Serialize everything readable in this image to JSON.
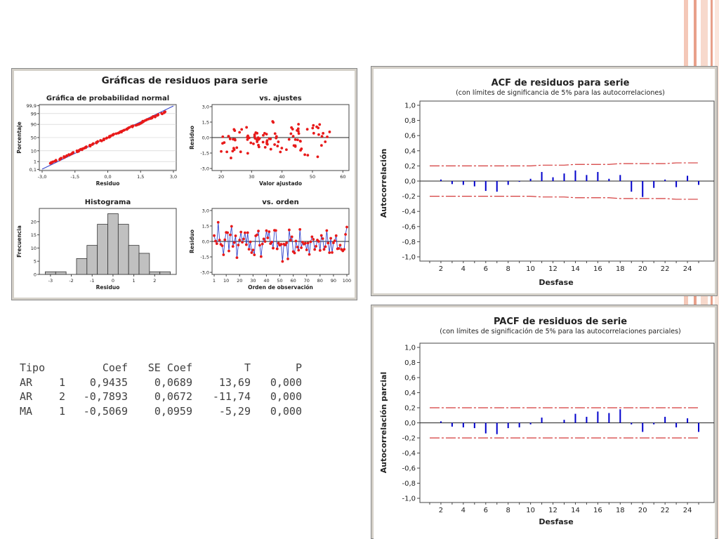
{
  "colors": {
    "accent": "#e8a08a",
    "bar": "#0000cc",
    "limit": "#d43a3a",
    "dot": "#e81a1a",
    "line": "#3344cc",
    "hist": "#c0c0c0"
  },
  "stats_table": {
    "headers": [
      "Tipo",
      "",
      "Coef",
      "SE Coef",
      "T",
      "P"
    ],
    "rows": [
      [
        "AR",
        "1",
        "0,9435",
        "0,0689",
        "13,69",
        "0,000"
      ],
      [
        "AR",
        "2",
        "-0,7893",
        "0,0672",
        "-11,74",
        "0,000"
      ],
      [
        "MA",
        "1",
        "-0,5069",
        "0,0959",
        "-5,29",
        "0,000"
      ]
    ]
  },
  "chart_data": [
    {
      "id": "residuals-4in1",
      "type": "panel",
      "title": "Gráficas de residuos para serie",
      "panels": [
        {
          "type": "scatter",
          "title": "Gráfica de probabilidad normal",
          "xlabel": "Residuo",
          "ylabel": "Porcentaje",
          "xticks": [
            "-3,0",
            "-1,5",
            "0,0",
            "1,5",
            "3,0"
          ],
          "yticks": [
            "0,1",
            "1",
            "10",
            "50",
            "90",
            "99",
            "99,9"
          ],
          "xlim": [
            -3,
            3
          ],
          "ylim": [
            -3.1,
            3.1
          ],
          "note": "normal probability scale, points near reference line"
        },
        {
          "type": "scatter",
          "title": "vs. ajustes",
          "xlabel": "Valor ajustado",
          "ylabel": "Residuo",
          "xticks": [
            "20",
            "30",
            "40",
            "50",
            "60"
          ],
          "yticks": [
            "3,0",
            "1,5",
            "0,0",
            "-1,5",
            "-3,0"
          ],
          "xlim": [
            17,
            62
          ],
          "ylim": [
            -3.2,
            3.2
          ]
        },
        {
          "type": "bar",
          "title": "Histograma",
          "xlabel": "Residuo",
          "ylabel": "Frecuencia",
          "bin_edges": [
            -3.25,
            -2.75,
            -2.25,
            -1.75,
            -1.25,
            -0.75,
            -0.25,
            0.25,
            0.75,
            1.25,
            1.75,
            2.25,
            2.75
          ],
          "values": [
            1,
            1,
            0,
            6,
            11,
            19,
            23,
            19,
            11,
            8,
            1,
            1
          ],
          "xticks": [
            "-3",
            "-2",
            "-1",
            "0",
            "1",
            "2"
          ],
          "yticks": [
            "0",
            "5",
            "10",
            "15",
            "20"
          ],
          "ylim": [
            0,
            25
          ]
        },
        {
          "type": "line",
          "title": "vs. orden",
          "xlabel": "Orden de observación",
          "ylabel": "Residuo",
          "xticks": [
            "1",
            "10",
            "20",
            "30",
            "40",
            "50",
            "60",
            "70",
            "80",
            "90",
            "100"
          ],
          "yticks": [
            "3,0",
            "1,5",
            "0,0",
            "-1,5",
            "-3,0"
          ],
          "xlim": [
            1,
            100
          ],
          "ylim": [
            -3.2,
            3.2
          ]
        }
      ]
    },
    {
      "id": "acf",
      "type": "bar",
      "title": "ACF de residuos para serie",
      "subtitle": "(con límites de significancia de 5% para las autocorrelaciones)",
      "xlabel": "Desfase",
      "ylabel": "Autocorrelación",
      "ylim": [
        -1,
        1
      ],
      "yticks": [
        "1,0",
        "0,8",
        "0,6",
        "0,4",
        "0,2",
        "0,0",
        "-0,2",
        "-0,4",
        "-0,6",
        "-0,8",
        "-1,0"
      ],
      "xticks": [
        "2",
        "4",
        "6",
        "8",
        "10",
        "12",
        "14",
        "16",
        "18",
        "20",
        "22",
        "24"
      ],
      "lags": [
        1,
        2,
        3,
        4,
        5,
        6,
        7,
        8,
        9,
        10,
        11,
        12,
        13,
        14,
        15,
        16,
        17,
        18,
        19,
        20,
        21,
        22,
        23,
        24,
        25
      ],
      "values": [
        0.0,
        0.02,
        -0.04,
        -0.05,
        -0.07,
        -0.13,
        -0.14,
        -0.05,
        -0.01,
        0.03,
        0.12,
        0.05,
        0.1,
        0.14,
        0.08,
        0.12,
        0.03,
        0.08,
        -0.14,
        -0.21,
        -0.09,
        0.02,
        -0.08,
        0.07,
        -0.05
      ],
      "upper_limit": [
        0.2,
        0.2,
        0.2,
        0.2,
        0.2,
        0.2,
        0.2,
        0.2,
        0.2,
        0.2,
        0.21,
        0.21,
        0.21,
        0.22,
        0.22,
        0.22,
        0.22,
        0.23,
        0.23,
        0.23,
        0.23,
        0.23,
        0.24,
        0.24,
        0.24
      ],
      "lower_limit": [
        -0.2,
        -0.2,
        -0.2,
        -0.2,
        -0.2,
        -0.2,
        -0.2,
        -0.2,
        -0.2,
        -0.2,
        -0.21,
        -0.21,
        -0.21,
        -0.22,
        -0.22,
        -0.22,
        -0.22,
        -0.23,
        -0.23,
        -0.23,
        -0.23,
        -0.23,
        -0.24,
        -0.24,
        -0.24
      ]
    },
    {
      "id": "pacf",
      "type": "bar",
      "title": "PACF de residuos de serie",
      "subtitle": "(con límites de significación de 5% para las autocorrelaciones parciales)",
      "xlabel": "Desfase",
      "ylabel": "Autocorrelación parcial",
      "ylim": [
        -1,
        1
      ],
      "yticks": [
        "1,0",
        "0,8",
        "0,6",
        "0,4",
        "0,2",
        "0,0",
        "-0,2",
        "-0,4",
        "-0,6",
        "-0,8",
        "-1,0"
      ],
      "xticks": [
        "2",
        "4",
        "6",
        "8",
        "10",
        "12",
        "14",
        "16",
        "18",
        "20",
        "22",
        "24"
      ],
      "lags": [
        1,
        2,
        3,
        4,
        5,
        6,
        7,
        8,
        9,
        10,
        11,
        12,
        13,
        14,
        15,
        16,
        17,
        18,
        19,
        20,
        21,
        22,
        23,
        24,
        25
      ],
      "values": [
        0.0,
        0.02,
        -0.05,
        -0.06,
        -0.07,
        -0.14,
        -0.15,
        -0.07,
        -0.06,
        -0.02,
        0.07,
        0.0,
        0.04,
        0.12,
        0.08,
        0.15,
        0.13,
        0.18,
        -0.02,
        -0.12,
        -0.02,
        0.08,
        -0.06,
        0.06,
        -0.12
      ],
      "upper_limit": [
        0.2,
        0.2,
        0.2,
        0.2,
        0.2,
        0.2,
        0.2,
        0.2,
        0.2,
        0.2,
        0.2,
        0.2,
        0.2,
        0.2,
        0.2,
        0.2,
        0.2,
        0.2,
        0.2,
        0.2,
        0.2,
        0.2,
        0.2,
        0.2,
        0.2
      ],
      "lower_limit": [
        -0.2,
        -0.2,
        -0.2,
        -0.2,
        -0.2,
        -0.2,
        -0.2,
        -0.2,
        -0.2,
        -0.2,
        -0.2,
        -0.2,
        -0.2,
        -0.2,
        -0.2,
        -0.2,
        -0.2,
        -0.2,
        -0.2,
        -0.2,
        -0.2,
        -0.2,
        -0.2,
        -0.2,
        -0.2
      ]
    }
  ]
}
